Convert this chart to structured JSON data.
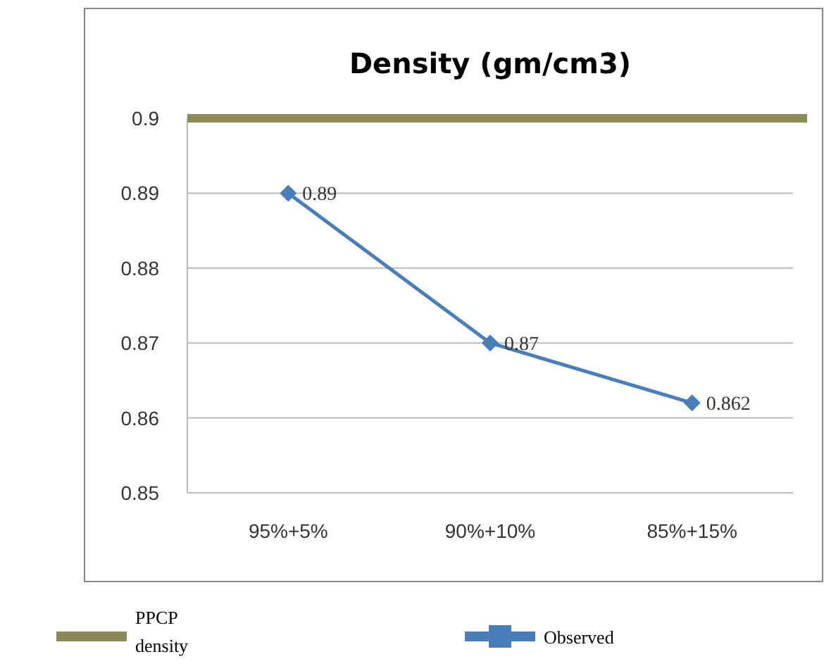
{
  "chart_data": {
    "type": "line",
    "title": "Density (gm/cm3)",
    "categories": [
      "95%+5%",
      "90%+10%",
      "85%+15%"
    ],
    "series": [
      {
        "name": "Observed",
        "color": "#4a7ebb",
        "values": [
          0.89,
          0.87,
          0.862
        ]
      }
    ],
    "ref_lines": [
      {
        "axis": "y",
        "value": 0.9,
        "label": "PPCP density",
        "color": "#8c8a5a"
      }
    ],
    "ylim": [
      0.85,
      0.9
    ],
    "yticks": [
      0.85,
      0.86,
      0.87,
      0.88,
      0.89,
      0.9
    ],
    "grid": "y",
    "marker": "diamond",
    "line_style": "solid",
    "data_labels": true,
    "legend": "bottom"
  }
}
